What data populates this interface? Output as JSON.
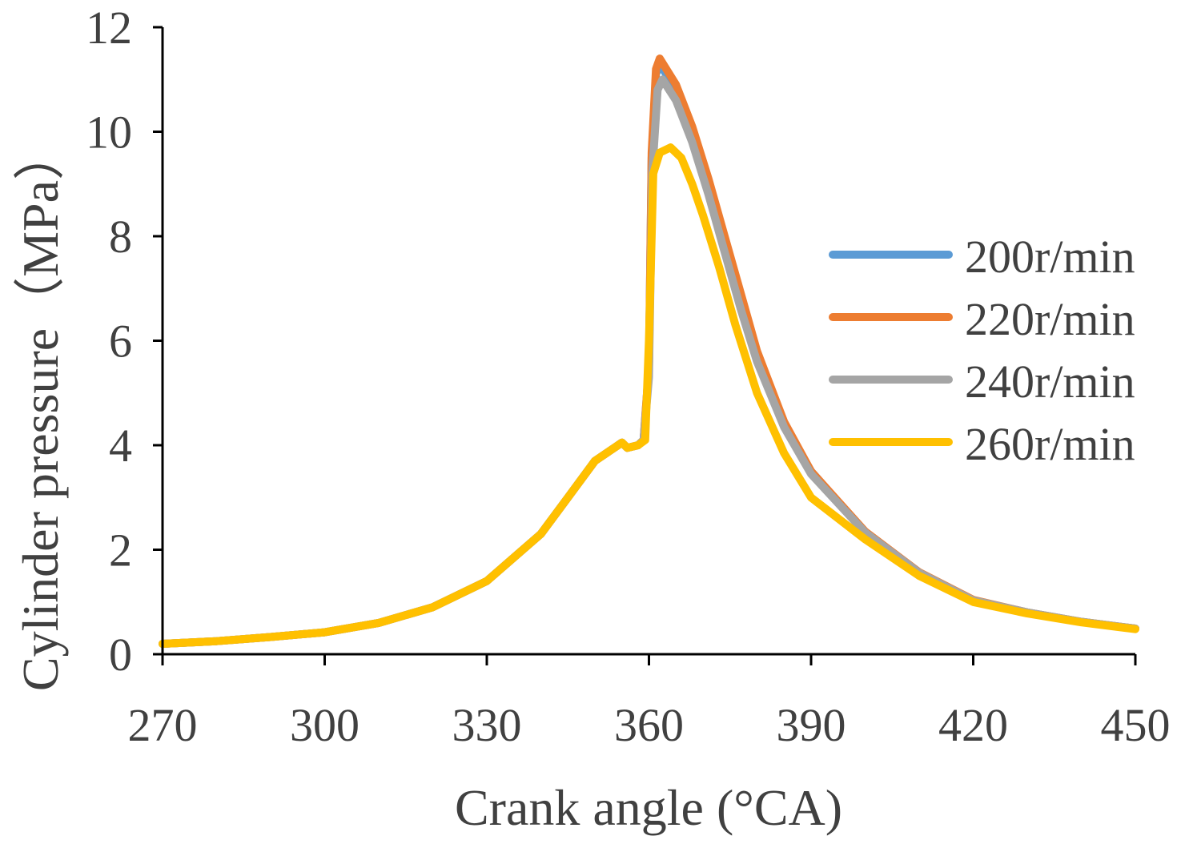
{
  "chart_data": {
    "type": "line",
    "title": "",
    "xlabel": "Crank angle (°CA)",
    "ylabel": "Cylinder pressure（MPa）",
    "xlim": [
      270,
      450
    ],
    "ylim": [
      0,
      12
    ],
    "xticks": [
      270,
      300,
      330,
      360,
      390,
      420,
      450
    ],
    "yticks": [
      0,
      2,
      4,
      6,
      8,
      10,
      12
    ],
    "grid": false,
    "legend_position": "right",
    "series": [
      {
        "name": "200r/min",
        "color": "#5B9BD5",
        "x": [
          270,
          280,
          290,
          300,
          310,
          320,
          330,
          340,
          345,
          350,
          355,
          356,
          358,
          359,
          360,
          360.5,
          361.3,
          362,
          365,
          368,
          371,
          374,
          377,
          380,
          385,
          390,
          400,
          410,
          420,
          430,
          440,
          450
        ],
        "y": [
          0.2,
          0.25,
          0.33,
          0.42,
          0.6,
          0.9,
          1.4,
          2.3,
          3.0,
          3.7,
          4.05,
          3.95,
          4.0,
          4.1,
          5.5,
          9.5,
          11.1,
          11.3,
          10.8,
          10.0,
          9.0,
          7.9,
          6.8,
          5.7,
          4.4,
          3.5,
          2.33,
          1.56,
          1.03,
          0.8,
          0.62,
          0.49
        ]
      },
      {
        "name": "220r/min",
        "color": "#ED7D31",
        "x": [
          270,
          280,
          290,
          300,
          310,
          320,
          330,
          340,
          345,
          350,
          355,
          356,
          358,
          359,
          360,
          360.5,
          361.3,
          362,
          365,
          368,
          371,
          374,
          377,
          380,
          385,
          390,
          400,
          410,
          420,
          430,
          440,
          450
        ],
        "y": [
          0.2,
          0.25,
          0.33,
          0.42,
          0.6,
          0.9,
          1.4,
          2.3,
          3.0,
          3.7,
          4.05,
          3.95,
          4.0,
          4.1,
          5.5,
          9.6,
          11.2,
          11.4,
          10.9,
          10.1,
          9.1,
          8.0,
          6.9,
          5.8,
          4.45,
          3.5,
          2.35,
          1.57,
          1.04,
          0.8,
          0.62,
          0.49
        ]
      },
      {
        "name": "240r/min",
        "color": "#A5A5A5",
        "x": [
          270,
          280,
          290,
          300,
          310,
          320,
          330,
          340,
          345,
          350,
          355,
          356,
          358,
          359,
          360,
          360.6,
          361.6,
          362.5,
          365,
          368,
          371,
          374,
          377,
          380,
          385,
          390,
          400,
          410,
          420,
          430,
          440,
          450
        ],
        "y": [
          0.2,
          0.25,
          0.33,
          0.42,
          0.6,
          0.9,
          1.4,
          2.3,
          3.0,
          3.7,
          4.05,
          3.95,
          4.0,
          4.1,
          5.3,
          9.2,
          10.8,
          11.0,
          10.6,
          9.8,
          8.8,
          7.7,
          6.6,
          5.6,
          4.35,
          3.45,
          2.33,
          1.56,
          1.03,
          0.8,
          0.62,
          0.49
        ]
      },
      {
        "name": "260r/min",
        "color": "#FFC000",
        "x": [
          270,
          280,
          290,
          300,
          310,
          320,
          330,
          340,
          345,
          350,
          355,
          356,
          358,
          359.3,
          360,
          360.8,
          362,
          364,
          366,
          368,
          370,
          373,
          376,
          380,
          385,
          390,
          400,
          410,
          420,
          430,
          440,
          450
        ],
        "y": [
          0.2,
          0.25,
          0.33,
          0.42,
          0.6,
          0.9,
          1.4,
          2.3,
          3.0,
          3.7,
          4.05,
          3.95,
          4.0,
          4.1,
          6.0,
          9.2,
          9.6,
          9.7,
          9.5,
          9.0,
          8.4,
          7.4,
          6.3,
          5.0,
          3.85,
          3.0,
          2.2,
          1.5,
          1.0,
          0.78,
          0.61,
          0.48
        ]
      }
    ]
  }
}
